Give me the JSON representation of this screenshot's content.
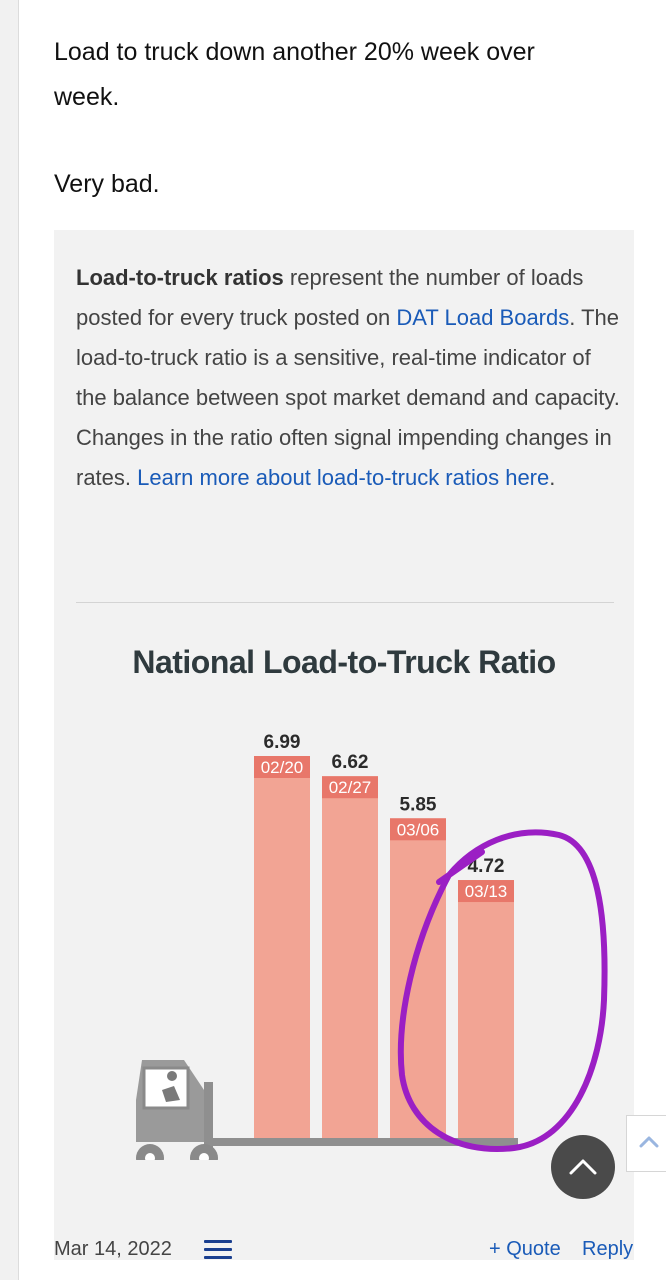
{
  "post": {
    "line1": "Load to truck down another 20% week over",
    "line2": "week.",
    "line3": "Very bad."
  },
  "quote": {
    "bold_lead": "Load-to-truck ratios",
    "text1": " represent the number of loads posted for every truck posted on ",
    "link1": "DAT Load Boards",
    "text2": ". The load-to-truck ratio is a sensitive, real-time indicator of the balance between spot market demand and capacity. Changes in the ratio often signal impending changes in rates. ",
    "link2": "Learn more about load-to-truck ratios here",
    "text3": "."
  },
  "chart_data": {
    "type": "bar",
    "title": "National Load-to-Truck Ratio",
    "categories": [
      "02/20",
      "02/27",
      "03/06",
      "03/13"
    ],
    "values": [
      6.99,
      6.62,
      5.85,
      4.72
    ],
    "value_labels": [
      "6.99",
      "6.62",
      "5.85",
      "4.72"
    ],
    "ylim": [
      0,
      7.5
    ],
    "bar_color": "#f2a494",
    "label_color": "#e8776a",
    "annotation_color": "#9b1fc4"
  },
  "footer": {
    "date": "Mar 14, 2022",
    "quote_label": "+ Quote",
    "reply_label": "Reply"
  },
  "icons": {
    "menu": "hamburger-menu-icon",
    "scroll_top": "chevron-up-icon",
    "side_tab": "chevron-up-icon"
  }
}
